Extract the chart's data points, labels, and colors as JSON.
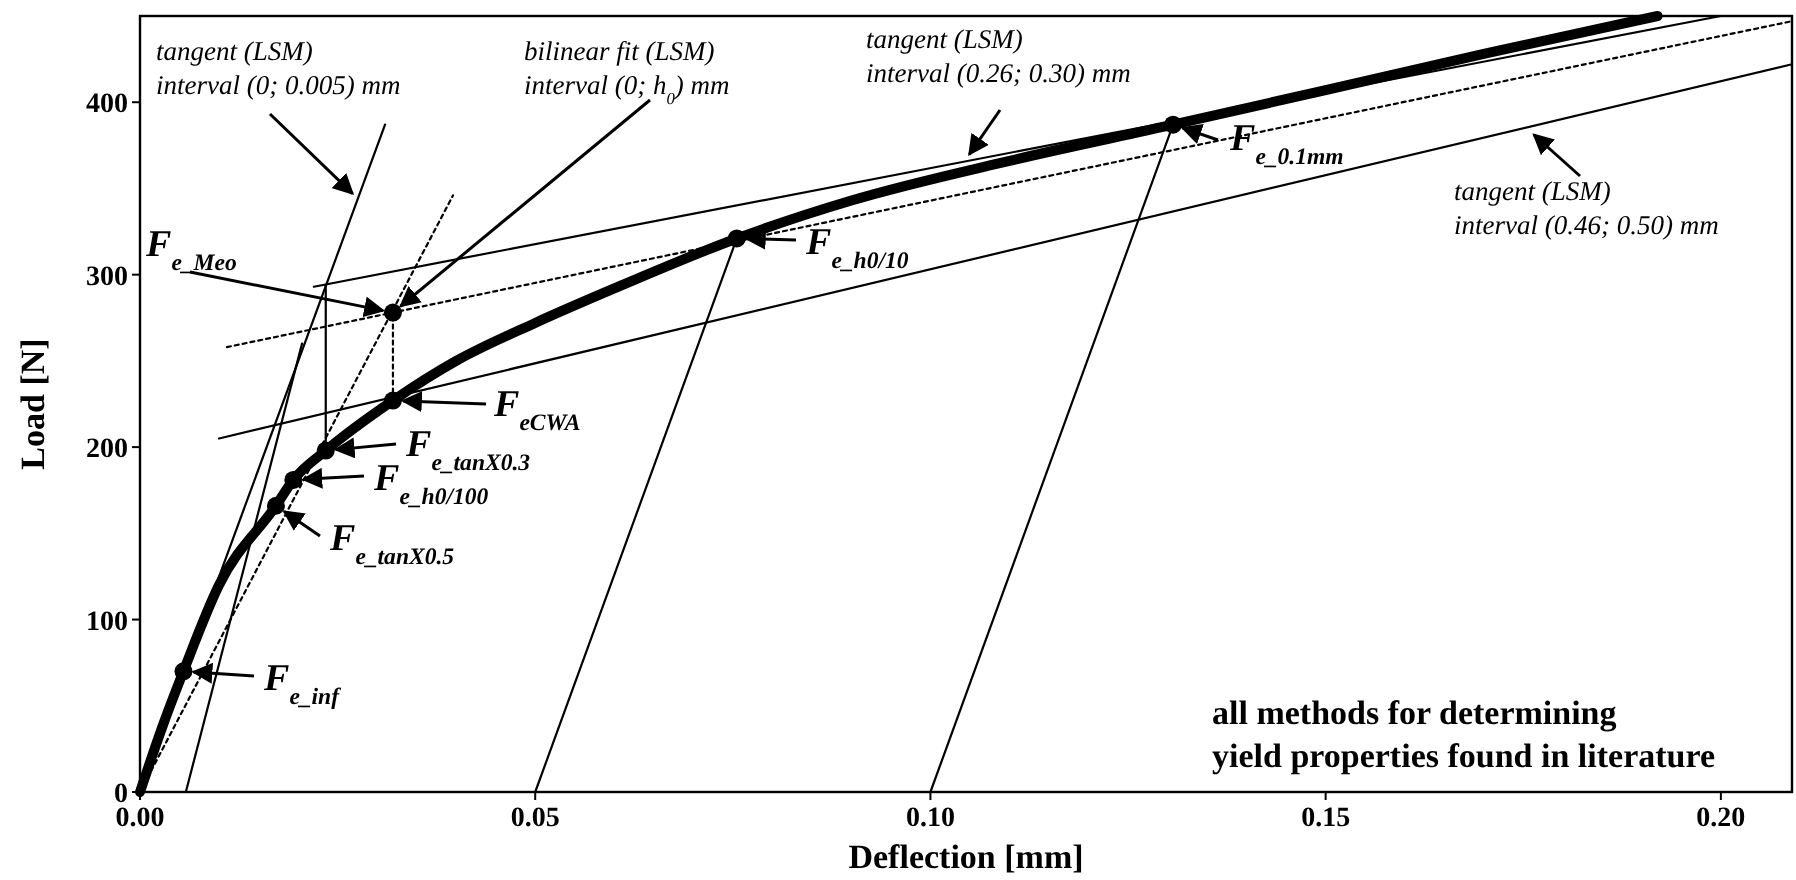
{
  "chart_data": {
    "type": "line",
    "xlabel": "Deflection [mm]",
    "ylabel": "Load [N]",
    "xlim": [
      0,
      0.209
    ],
    "ylim": [
      0,
      450
    ],
    "xticks": [
      {
        "value": 0,
        "label": "0.00"
      },
      {
        "value": 0.05,
        "label": "0.05"
      },
      {
        "value": 0.1,
        "label": "0.10"
      },
      {
        "value": 0.15,
        "label": "0.15"
      },
      {
        "value": 0.2,
        "label": "0.20"
      }
    ],
    "yticks": [
      0,
      100,
      200,
      300,
      400
    ],
    "grid": false,
    "series": [
      {
        "color": "#000000",
        "line_style": "solid",
        "x": [
          0,
          0.003,
          0.0055,
          0.01,
          0.0172,
          0.0194,
          0.0235,
          0.032,
          0.04,
          0.05,
          0.06,
          0.0755,
          0.09,
          0.11,
          0.1307,
          0.15,
          0.17,
          0.192
        ],
        "values": [
          0,
          40,
          70,
          120,
          166,
          181,
          198,
          227,
          250,
          272,
          292,
          321,
          343,
          366,
          387,
          407,
          428,
          450
        ]
      },
      {
        "type": "line",
        "color": "#000000",
        "line_style": "solid",
        "x": [
          0,
          0.031
        ],
        "values": [
          0,
          387
        ]
      },
      {
        "type": "line",
        "color": "#000000",
        "line_style": "solid",
        "x": [
          0.0058,
          0.0205
        ],
        "values": [
          0,
          260
        ]
      },
      {
        "type": "line",
        "color": "#000000",
        "line_style": "solid",
        "x": [
          0.05,
          0.0755
        ],
        "values": [
          0,
          321
        ]
      },
      {
        "type": "line",
        "color": "#000000",
        "line_style": "solid",
        "x": [
          0.1,
          0.1307
        ],
        "values": [
          0,
          387
        ]
      },
      {
        "type": "line",
        "color": "#000000",
        "line_style": "solid",
        "x": [
          0.022,
          0.2
        ],
        "values": [
          293,
          450
        ]
      },
      {
        "type": "line",
        "color": "#000000",
        "line_style": "solid",
        "x": [
          0.01,
          0.209
        ],
        "values": [
          205,
          422
        ]
      },
      {
        "type": "line",
        "color": "#000000",
        "line_style": "dotted",
        "x": [
          0,
          0.0396
        ],
        "values": [
          0,
          346
        ]
      },
      {
        "type": "line",
        "color": "#000000",
        "line_style": "dotted",
        "x": [
          0.011,
          0.209
        ],
        "values": [
          258,
          447
        ]
      },
      {
        "type": "line",
        "color": "#000000",
        "line_style": "solid",
        "x": [
          0.0235,
          0.0235
        ],
        "values": [
          198,
          294
        ]
      },
      {
        "type": "line",
        "color": "#000000",
        "line_style": "dotted",
        "x": [
          0.032,
          0.032
        ],
        "values": [
          227,
          278
        ]
      },
      {
        "type": "scatter",
        "color": "#000000",
        "marker": "circle",
        "x": [
          0.0055,
          0.0172,
          0.0194,
          0.0235,
          0.032,
          0.032,
          0.0755,
          0.1307
        ],
        "values": [
          70,
          166,
          181,
          198,
          227,
          278,
          321,
          387
        ]
      }
    ],
    "annotations": [
      {
        "text": "tangent (LSM)\ninterval (0; 0.005) mm",
        "x": 0.0278,
        "y": 343
      },
      {
        "text": "bilinear fit (LSM)\ninterval (0; h$_{0}$) mm",
        "x": 0.032,
        "y": 278
      },
      {
        "text": "tangent (LSM)\ninterval (0.26; 0.30) mm",
        "x": 0.1042,
        "y": 365
      },
      {
        "text": "tangent (LSM)\ninterval (0.46; 0.50) mm",
        "x": 0.1754,
        "y": 385
      },
      {
        "text": "F$_{e_Meo}$",
        "x": 0.032,
        "y": 278
      },
      {
        "text": "F$_{eCWA}$",
        "x": 0.032,
        "y": 227
      },
      {
        "text": "F$_{e_tanX0.3}$",
        "x": 0.0235,
        "y": 198
      },
      {
        "text": "F$_{e_h0/100}$",
        "x": 0.0194,
        "y": 181
      },
      {
        "text": "F$_{e_tanX0.5}$",
        "x": 0.0172,
        "y": 166
      },
      {
        "text": "F$_{e_inf}$",
        "x": 0.0055,
        "y": 70
      },
      {
        "text": "F$_{e_h0/10}$",
        "x": 0.0755,
        "y": 321
      },
      {
        "text": "F$_{e_0.1mm}$",
        "x": 0.1307,
        "y": 387
      },
      "all methods for determining\nyield properties found in literature"
    ]
  }
}
